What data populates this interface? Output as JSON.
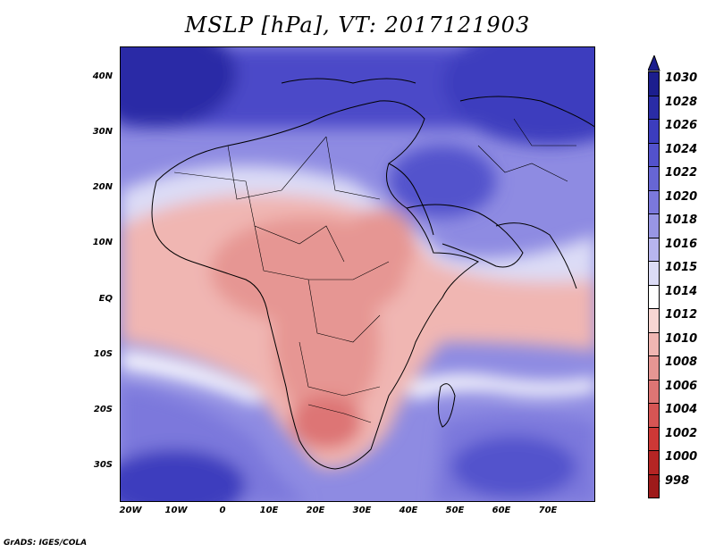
{
  "title": "MSLP [hPa], VT: 2017121903",
  "credit": "GrADS: IGES/COLA",
  "y_axis": {
    "labels": [
      "40N",
      "30N",
      "20N",
      "10N",
      "EQ",
      "10S",
      "20S",
      "30S"
    ],
    "values": [
      40,
      30,
      20,
      10,
      0,
      -10,
      -20,
      -30
    ],
    "range": [
      -37,
      45
    ]
  },
  "x_axis": {
    "labels": [
      "20W",
      "10W",
      "0",
      "10E",
      "20E",
      "30E",
      "40E",
      "50E",
      "60E",
      "70E"
    ],
    "values": [
      -20,
      -10,
      0,
      10,
      20,
      30,
      40,
      50,
      60,
      70
    ],
    "range": [
      -22,
      80
    ]
  },
  "colorbar": {
    "levels": [
      "1030",
      "1028",
      "1026",
      "1024",
      "1022",
      "1020",
      "1018",
      "1016",
      "1015",
      "1014",
      "1012",
      "1010",
      "1008",
      "1006",
      "1004",
      "1002",
      "1000",
      "998"
    ],
    "colors": [
      "#1c1e8e",
      "#2a2ca6",
      "#3c3dbe",
      "#5352cc",
      "#6766d4",
      "#7b78dc",
      "#9896e4",
      "#b7b5ee",
      "#dcdcf6",
      "#ffffff",
      "#f7d6d3",
      "#f0b6b2",
      "#e69693",
      "#dd7574",
      "#d65554",
      "#cd3836",
      "#b52524",
      "#9e1a1a"
    ]
  },
  "colors": {
    "high": "#2a2ca6",
    "neutral": "#ffffff",
    "low": "#dd7574"
  }
}
